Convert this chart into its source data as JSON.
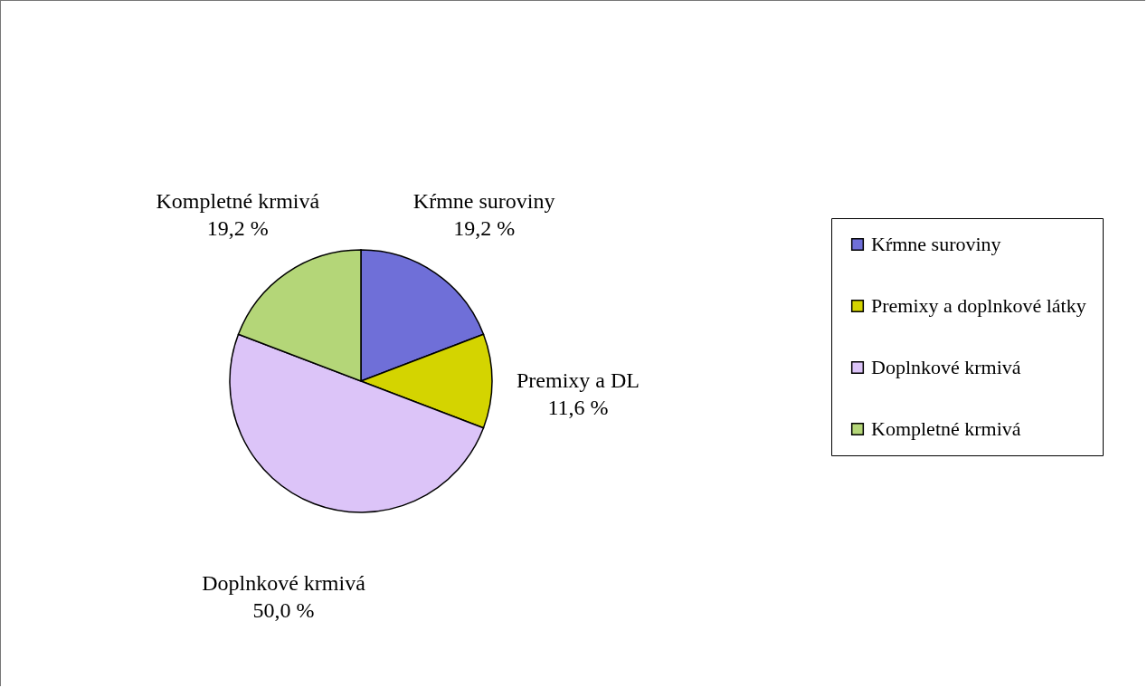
{
  "chart_data": {
    "type": "pie",
    "categories": [
      "Kŕmne suroviny",
      "Premixy a doplnkové látky",
      "Doplnkové krmivá",
      "Kompletné krmivá"
    ],
    "values": [
      19.2,
      11.6,
      50.0,
      19.2
    ],
    "colors": [
      "#6f6fd8",
      "#d4d400",
      "#dcc4f8",
      "#b4d678"
    ],
    "value_labels": [
      "19,2 %",
      "11,6 %",
      "50,0 %",
      "19,2 %"
    ],
    "annotations": [
      "Kŕmne suroviny",
      "Premixy a DL",
      "Doplnkové krmivá",
      "Kompletné krmivá"
    ],
    "legend": "right"
  }
}
